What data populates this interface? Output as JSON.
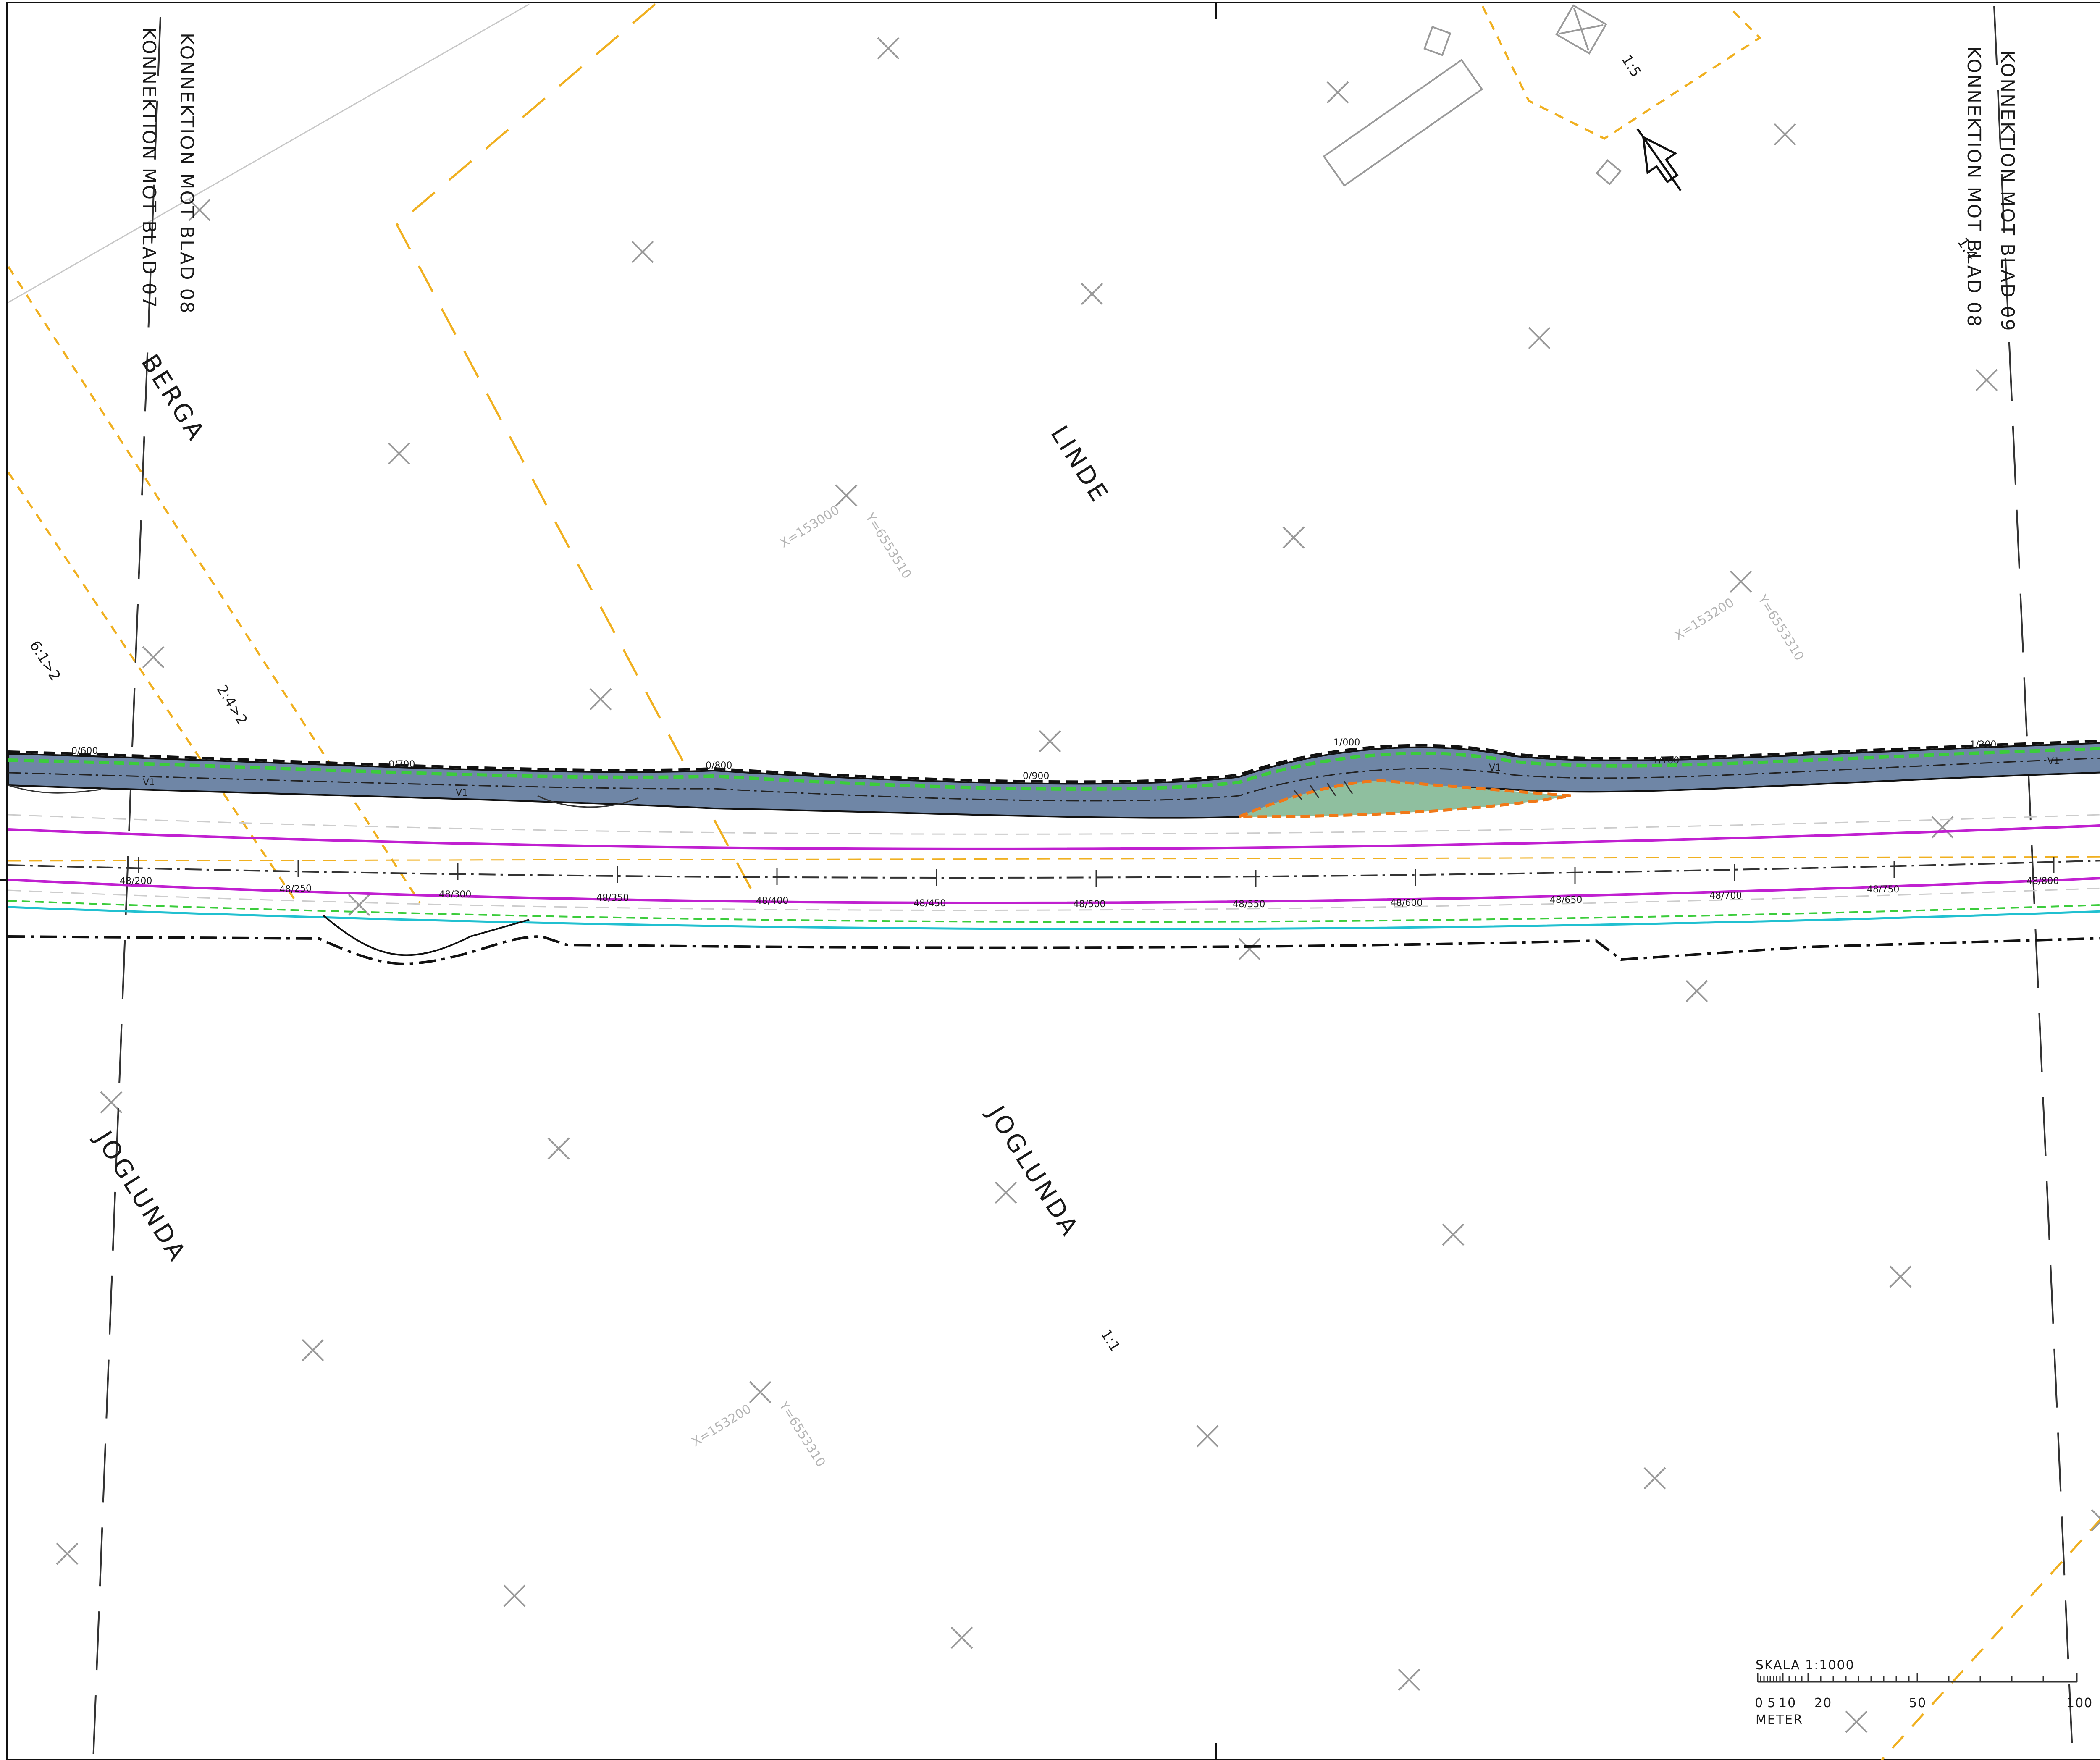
{
  "map": {
    "sheet_joins": [
      {
        "id": "left-upper",
        "text": "KONNEKTION MOT BLAD 08"
      },
      {
        "id": "left-lower",
        "text": "KONNEKTION MOT BLAD 07"
      },
      {
        "id": "right-upper",
        "text": "KONNEKTION MOT BLAD 09"
      },
      {
        "id": "right-lower",
        "text": "KONNEKTION MOT BLAD 08"
      }
    ],
    "place_names": [
      {
        "id": "berga",
        "text": "BERGA"
      },
      {
        "id": "linde",
        "text": "LINDE"
      },
      {
        "id": "joglunda-west",
        "text": "JOGLUNDA"
      },
      {
        "id": "joglunda-central",
        "text": "JOGLUNDA"
      }
    ],
    "property_numbers": [
      {
        "id": "p15",
        "text": "1:5"
      },
      {
        "id": "p14",
        "text": "1:4"
      },
      {
        "id": "p612",
        "text": "6:1>2"
      },
      {
        "id": "p242",
        "text": "2:4>2"
      },
      {
        "id": "p11",
        "text": "1:1"
      }
    ],
    "grid_coords": [
      {
        "id": "g1x",
        "text": "X=153000"
      },
      {
        "id": "g1y",
        "text": "Y=6553510"
      },
      {
        "id": "g2x",
        "text": "X=153200"
      },
      {
        "id": "g2y",
        "text": "Y=6553310"
      },
      {
        "id": "g3x",
        "text": "X=153200"
      },
      {
        "id": "g3y",
        "text": "Y=6553310"
      }
    ],
    "road_chainage": [
      "0/600",
      "0/700",
      "0/800",
      "0/900",
      "1/000",
      "1/100",
      "1/200"
    ],
    "road_label": "V1",
    "main_chainage": [
      "48/200",
      "48/250",
      "48/300",
      "48/350",
      "48/400",
      "48/450",
      "48/500",
      "48/550",
      "48/600",
      "48/650",
      "48/700",
      "48/750",
      "48/800"
    ],
    "scale": {
      "title": "SKALA 1:1000",
      "ticks": [
        "0",
        "5",
        "10",
        "20",
        "50",
        "100"
      ],
      "unit": "METER"
    },
    "colors": {
      "road_fill": "#6f86a6",
      "road_edge_green": "#3bcc3b",
      "purple_line": "#c020d0",
      "cyan_line": "#20c0d0",
      "orange_boundary": "#f0b020",
      "green_area": "#8fbf9f",
      "orange_area_edge": "#f07818"
    }
  }
}
